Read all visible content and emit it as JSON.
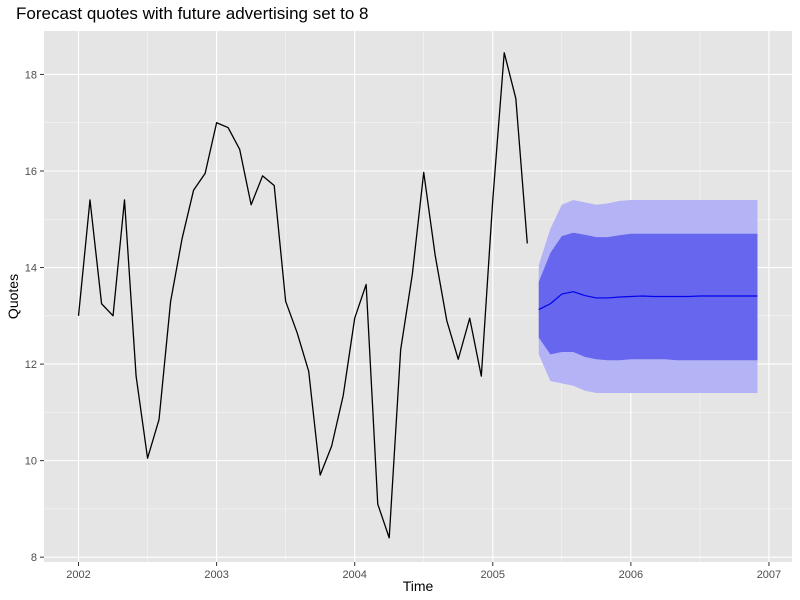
{
  "chart_data": {
    "type": "line",
    "title": "Forecast quotes with future advertising set to 8",
    "xlabel": "Time",
    "ylabel": "Quotes",
    "xlim": [
      2001.75,
      2007.167
    ],
    "ylim": [
      7.9,
      18.9
    ],
    "x_ticks": [
      2002,
      2003,
      2004,
      2005,
      2006,
      2007
    ],
    "x_tick_labels": [
      "2002",
      "2003",
      "2004",
      "2005",
      "2006",
      "2007"
    ],
    "y_ticks": [
      8,
      10,
      12,
      14,
      16,
      18
    ],
    "y_tick_labels": [
      "8",
      "10",
      "12",
      "14",
      "16",
      "18"
    ],
    "grid": true,
    "legend": "none",
    "colors": {
      "panel_background": "#e5e5e5",
      "grid_major": "#ffffff",
      "history_line": "#000000",
      "forecast_line": "#0000ee",
      "pi80_fill": "#6666ee",
      "pi95_fill": "#b3b3f5",
      "tick_color": "#4d4d4d"
    },
    "series": [
      {
        "values": [
          [
            2002.0,
            13.0
          ],
          [
            2002.083,
            15.4
          ],
          [
            2002.167,
            13.25
          ],
          [
            2002.25,
            13.0
          ],
          [
            2002.333,
            15.4
          ],
          [
            2002.417,
            11.75
          ],
          [
            2002.5,
            10.05
          ],
          [
            2002.583,
            10.85
          ],
          [
            2002.667,
            13.3
          ],
          [
            2002.75,
            14.6
          ],
          [
            2002.833,
            15.6
          ],
          [
            2002.917,
            15.95
          ],
          [
            2003.0,
            17.0
          ],
          [
            2003.083,
            16.9
          ],
          [
            2003.167,
            16.45
          ],
          [
            2003.25,
            15.3
          ],
          [
            2003.333,
            15.9
          ],
          [
            2003.417,
            15.7
          ],
          [
            2003.5,
            13.3
          ],
          [
            2003.583,
            12.65
          ],
          [
            2003.667,
            11.85
          ],
          [
            2003.75,
            9.7
          ],
          [
            2003.833,
            10.3
          ],
          [
            2003.917,
            11.35
          ],
          [
            2004.0,
            12.95
          ],
          [
            2004.083,
            13.65
          ],
          [
            2004.167,
            9.1
          ],
          [
            2004.25,
            8.4
          ],
          [
            2004.333,
            12.3
          ],
          [
            2004.417,
            13.85
          ],
          [
            2004.5,
            15.97
          ],
          [
            2004.583,
            14.25
          ],
          [
            2004.667,
            12.9
          ],
          [
            2004.75,
            12.1
          ],
          [
            2004.833,
            12.95
          ],
          [
            2004.917,
            11.75
          ],
          [
            2005.0,
            15.4
          ],
          [
            2005.083,
            18.45
          ],
          [
            2005.167,
            17.5
          ],
          [
            2005.25,
            14.5
          ]
        ]
      },
      {
        "values": [
          [
            2005.333,
            13.13
          ],
          [
            2005.417,
            13.25
          ],
          [
            2005.5,
            13.45
          ],
          [
            2005.583,
            13.5
          ],
          [
            2005.667,
            13.42
          ],
          [
            2005.75,
            13.37
          ],
          [
            2005.833,
            13.37
          ],
          [
            2005.917,
            13.39
          ],
          [
            2006.0,
            13.4
          ],
          [
            2006.083,
            13.41
          ],
          [
            2006.167,
            13.4
          ],
          [
            2006.25,
            13.4
          ],
          [
            2006.333,
            13.4
          ],
          [
            2006.417,
            13.4
          ],
          [
            2006.5,
            13.41
          ],
          [
            2006.583,
            13.41
          ],
          [
            2006.667,
            13.41
          ],
          [
            2006.75,
            13.41
          ],
          [
            2006.833,
            13.41
          ],
          [
            2006.917,
            13.41
          ]
        ]
      }
    ],
    "intervals": [
      {
        "level": 95,
        "x": [
          2005.333,
          2005.417,
          2005.5,
          2005.583,
          2005.667,
          2005.75,
          2005.833,
          2005.917,
          2006.0,
          2006.083,
          2006.167,
          2006.25,
          2006.333,
          2006.417,
          2006.5,
          2006.583,
          2006.667,
          2006.75,
          2006.833,
          2006.917
        ],
        "lower": [
          12.2,
          11.65,
          11.6,
          11.55,
          11.45,
          11.4,
          11.4,
          11.4,
          11.4,
          11.4,
          11.4,
          11.4,
          11.4,
          11.4,
          11.4,
          11.4,
          11.4,
          11.4,
          11.4,
          11.4
        ],
        "upper": [
          14.05,
          14.8,
          15.3,
          15.4,
          15.35,
          15.3,
          15.33,
          15.38,
          15.4,
          15.4,
          15.4,
          15.4,
          15.4,
          15.4,
          15.4,
          15.4,
          15.4,
          15.4,
          15.4,
          15.4
        ]
      },
      {
        "level": 80,
        "x": [
          2005.333,
          2005.417,
          2005.5,
          2005.583,
          2005.667,
          2005.75,
          2005.833,
          2005.917,
          2006.0,
          2006.083,
          2006.167,
          2006.25,
          2006.333,
          2006.417,
          2006.5,
          2006.583,
          2006.667,
          2006.75,
          2006.833,
          2006.917
        ],
        "lower": [
          12.55,
          12.2,
          12.25,
          12.25,
          12.15,
          12.1,
          12.08,
          12.08,
          12.1,
          12.1,
          12.1,
          12.1,
          12.08,
          12.08,
          12.08,
          12.08,
          12.08,
          12.08,
          12.08,
          12.08
        ],
        "upper": [
          13.7,
          14.3,
          14.65,
          14.72,
          14.68,
          14.63,
          14.63,
          14.67,
          14.7,
          14.7,
          14.7,
          14.7,
          14.7,
          14.7,
          14.7,
          14.7,
          14.7,
          14.7,
          14.7,
          14.7
        ]
      }
    ]
  }
}
